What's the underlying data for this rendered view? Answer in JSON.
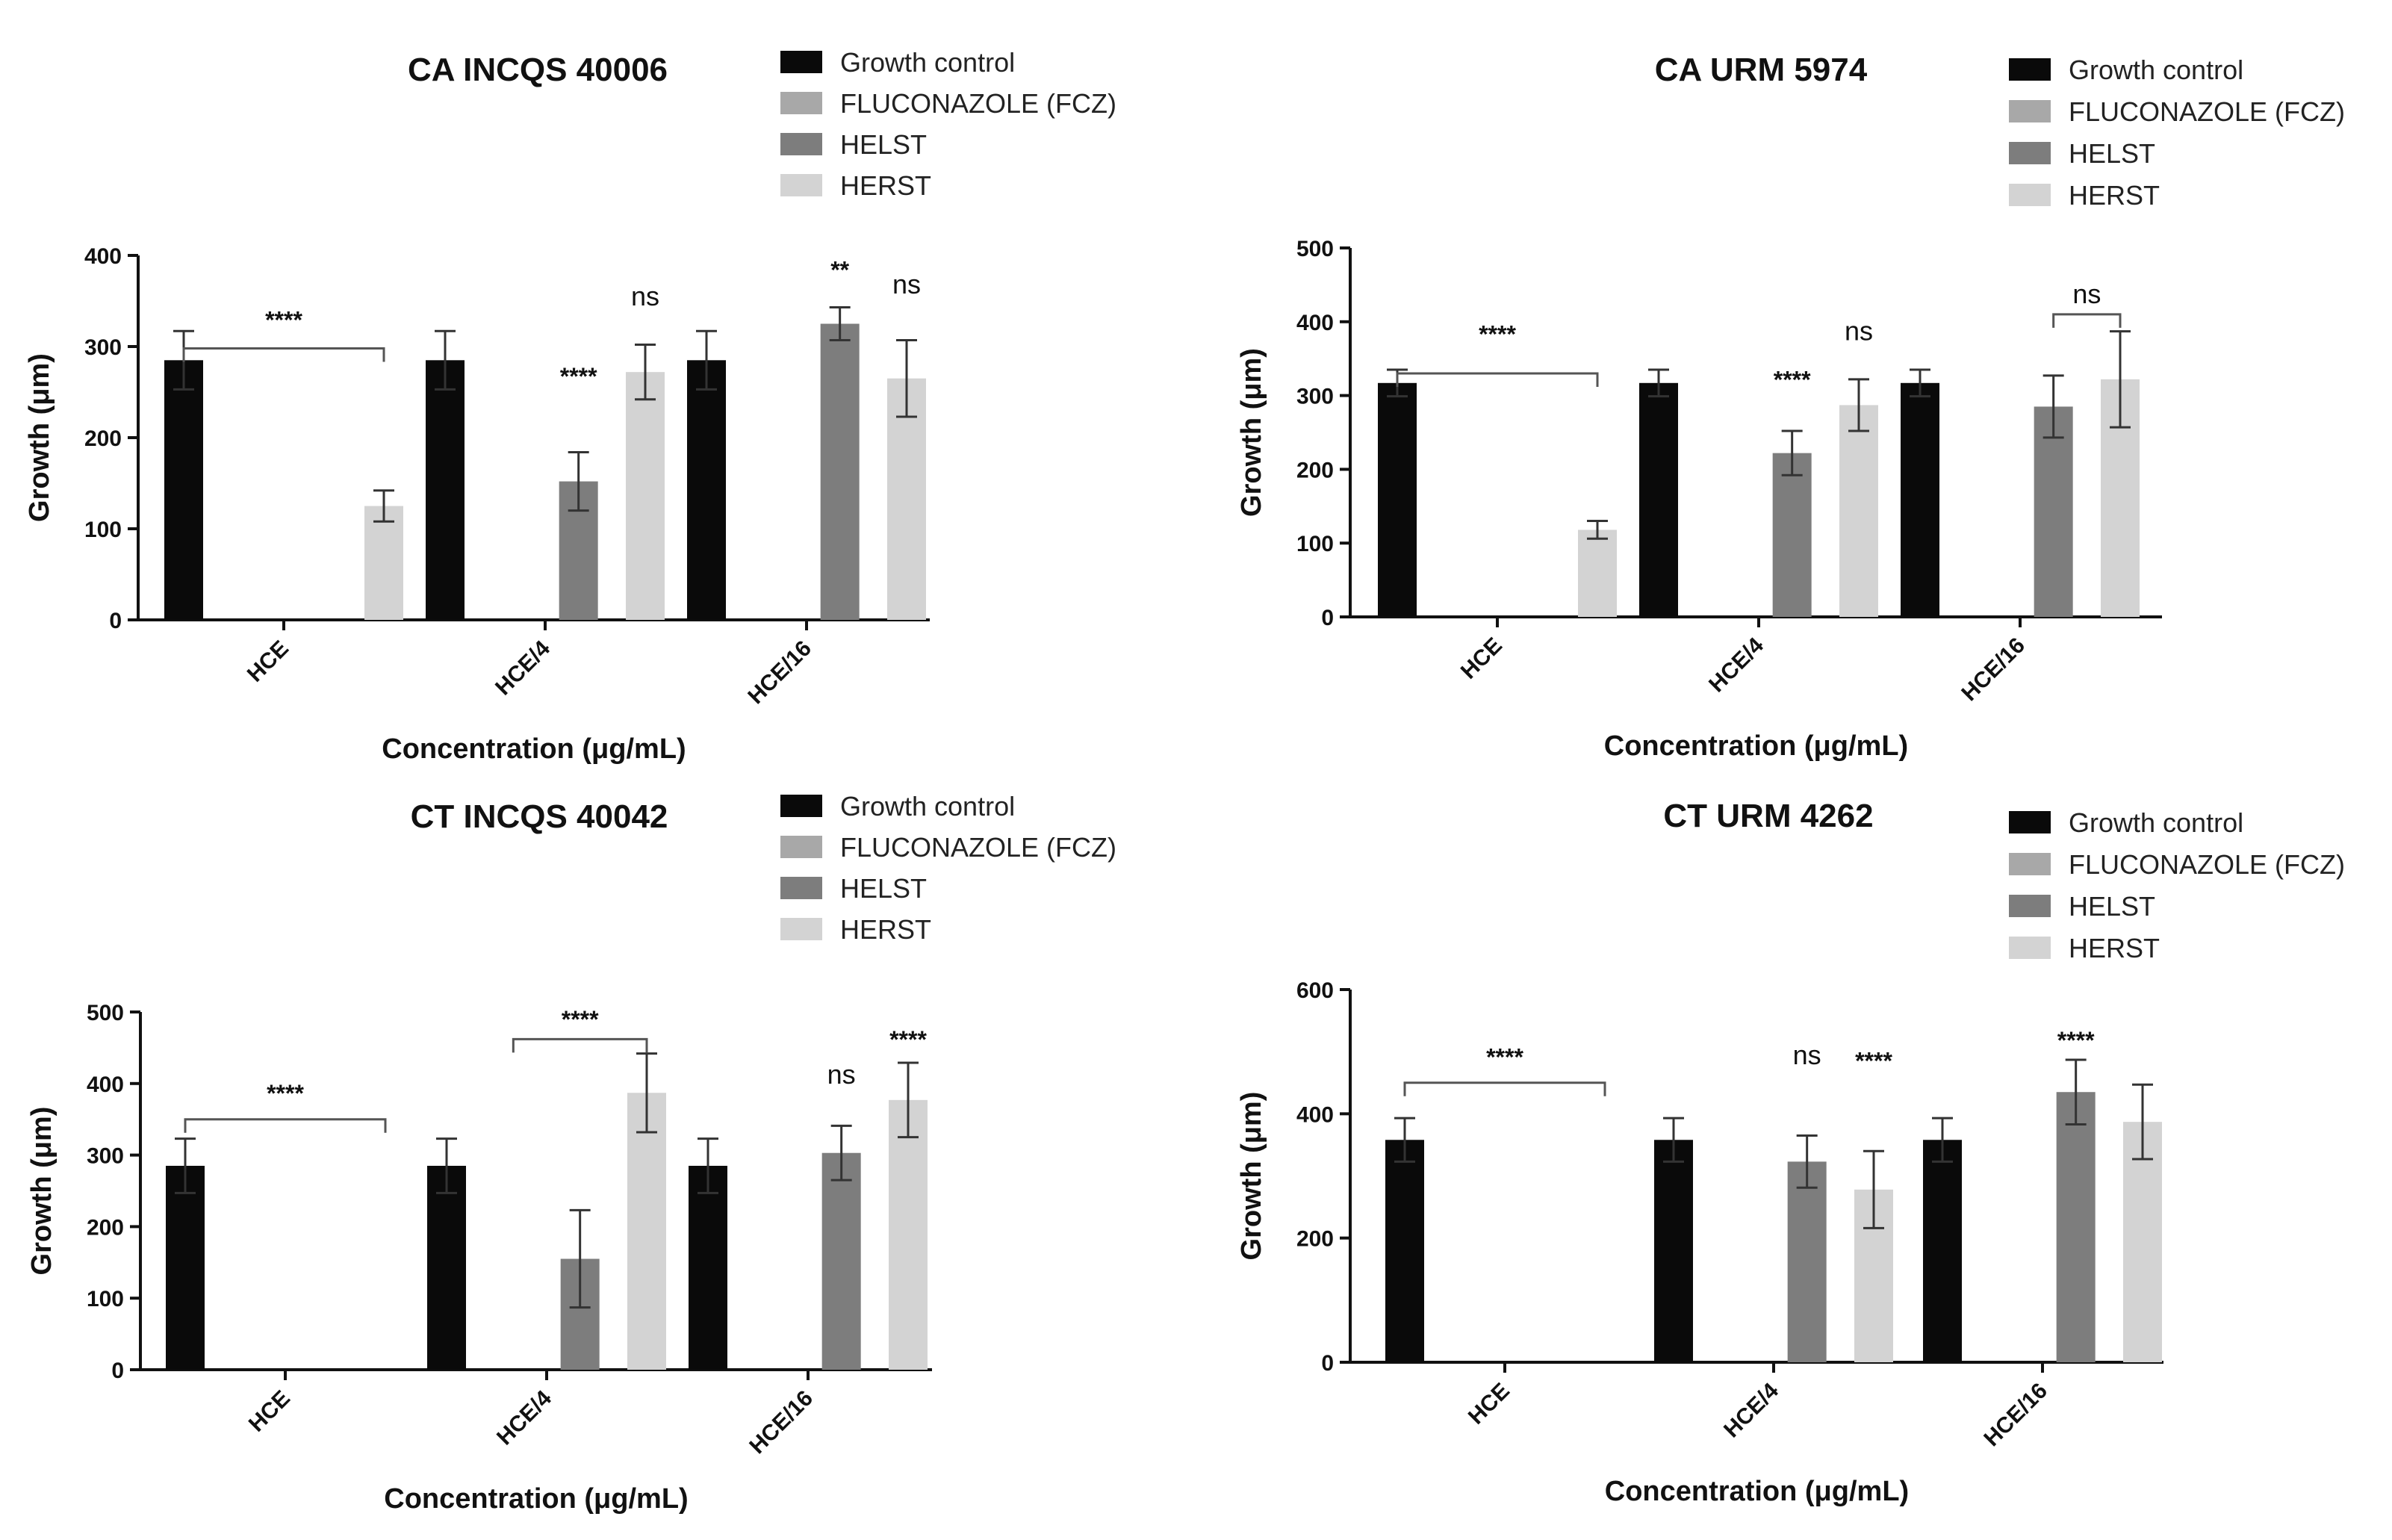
{
  "colors": {
    "growth_control": "#0a0a0a",
    "fluconazole": "#a8a8a8",
    "helst": "#7d7d7d",
    "herst": "#d3d3d3"
  },
  "chart_data": [
    {
      "type": "bar",
      "title": "CA INCQS 40006",
      "xlabel": "Concentration (μg/mL)",
      "ylabel": "Growth (μm)",
      "ylim": [
        0,
        400
      ],
      "yticks": [
        "0",
        "100",
        "200",
        "300",
        "400"
      ],
      "categories": [
        "HCE",
        "HCE/4",
        "HCE/16"
      ],
      "legend": [
        "Growth control",
        "FLUCONAZOLE (FCZ)",
        "HELST",
        "HERST"
      ],
      "series": [
        {
          "name": "Growth control",
          "color_key": "growth_control",
          "values": [
            285,
            285,
            285
          ],
          "errors": [
            32,
            32,
            32
          ]
        },
        {
          "name": "FLUCONAZOLE (FCZ)",
          "color_key": "fluconazole",
          "values": [
            0,
            0,
            0
          ],
          "errors": [
            0,
            0,
            0
          ]
        },
        {
          "name": "HELST",
          "color_key": "helst",
          "values": [
            0,
            152,
            325
          ],
          "errors": [
            0,
            32,
            18
          ]
        },
        {
          "name": "HERST",
          "color_key": "herst",
          "values": [
            125,
            272,
            265
          ],
          "errors": [
            17,
            30,
            42
          ]
        }
      ],
      "annotations": [
        {
          "text": "****",
          "cat": 0,
          "series": 2,
          "y": 320,
          "bracket": [
            0,
            3
          ],
          "bracket_y": 298
        },
        {
          "text": "****",
          "cat": 1,
          "series": 2,
          "y": 258
        },
        {
          "text": "ns",
          "cat": 1,
          "series": 3,
          "y": 345
        },
        {
          "text": "**",
          "cat": 2,
          "series": 2,
          "y": 375
        },
        {
          "text": "ns",
          "cat": 2,
          "series": 3,
          "y": 358
        }
      ]
    },
    {
      "type": "bar",
      "title": "CA URM 5974",
      "xlabel": "Concentration (μg/mL)",
      "ylabel": "Growth (μm)",
      "ylim": [
        0,
        500
      ],
      "yticks": [
        "0",
        "100",
        "200",
        "300",
        "400",
        "500"
      ],
      "categories": [
        "HCE",
        "HCE/4",
        "HCE/16"
      ],
      "legend": [
        "Growth control",
        "FLUCONAZOLE (FCZ)",
        "HELST",
        "HERST"
      ],
      "series": [
        {
          "name": "Growth control",
          "color_key": "growth_control",
          "values": [
            317,
            317,
            317
          ],
          "errors": [
            18,
            18,
            18
          ]
        },
        {
          "name": "FLUCONAZOLE (FCZ)",
          "color_key": "fluconazole",
          "values": [
            0,
            0,
            0
          ],
          "errors": [
            0,
            0,
            0
          ]
        },
        {
          "name": "HELST",
          "color_key": "helst",
          "values": [
            0,
            222,
            285
          ],
          "errors": [
            0,
            30,
            42
          ]
        },
        {
          "name": "HERST",
          "color_key": "herst",
          "values": [
            118,
            287,
            322
          ],
          "errors": [
            12,
            35,
            65
          ]
        }
      ],
      "annotations": [
        {
          "text": "****",
          "cat": 0,
          "series": 2,
          "y": 372,
          "bracket": [
            0,
            3
          ],
          "bracket_y": 330
        },
        {
          "text": "****",
          "cat": 1,
          "series": 2,
          "y": 310
        },
        {
          "text": "ns",
          "cat": 1,
          "series": 3,
          "y": 375
        },
        {
          "text": "ns",
          "cat": 2,
          "series": 2.5,
          "y": 425,
          "bracket": [
            2,
            3
          ],
          "bracket_y": 410
        }
      ]
    },
    {
      "type": "bar",
      "title": "CT INCQS 40042",
      "xlabel": "Concentration (μg/mL)",
      "ylabel": "Growth (μm)",
      "ylim": [
        0,
        500
      ],
      "yticks": [
        "0",
        "100",
        "200",
        "300",
        "400",
        "500"
      ],
      "categories": [
        "HCE",
        "HCE/4",
        "HCE/16"
      ],
      "legend": [
        "Growth control",
        "FLUCONAZOLE (FCZ)",
        "HELST",
        "HERST"
      ],
      "series": [
        {
          "name": "Growth control",
          "color_key": "growth_control",
          "values": [
            285,
            285,
            285
          ],
          "errors": [
            38,
            38,
            38
          ]
        },
        {
          "name": "FLUCONAZOLE (FCZ)",
          "color_key": "fluconazole",
          "values": [
            0,
            0,
            0
          ],
          "errors": [
            0,
            0,
            0
          ]
        },
        {
          "name": "HELST",
          "color_key": "helst",
          "values": [
            0,
            155,
            303
          ],
          "errors": [
            0,
            68,
            38
          ]
        },
        {
          "name": "HERST",
          "color_key": "herst",
          "values": [
            0,
            387,
            377
          ],
          "errors": [
            0,
            55,
            52
          ]
        }
      ],
      "annotations": [
        {
          "text": "****",
          "cat": 0,
          "series": 2,
          "y": 375,
          "bracket": [
            0,
            3
          ],
          "bracket_y": 350
        },
        {
          "text": "****",
          "cat": 1,
          "series": 2.5,
          "y": 478,
          "bracket": [
            1,
            3
          ],
          "bracket_y": 462
        },
        {
          "text": "ns",
          "cat": 2,
          "series": 2,
          "y": 400
        },
        {
          "text": "****",
          "cat": 2,
          "series": 3,
          "y": 450
        }
      ]
    },
    {
      "type": "bar",
      "title": "CT URM 4262",
      "xlabel": "Concentration (μg/mL)",
      "ylabel": "Growth (μm)",
      "ylim": [
        0,
        600
      ],
      "yticks": [
        "0",
        "200",
        "400",
        "600"
      ],
      "categories": [
        "HCE",
        "HCE/4",
        "HCE/16"
      ],
      "legend": [
        "Growth control",
        "FLUCONAZOLE (FCZ)",
        "HELST",
        "HERST"
      ],
      "series": [
        {
          "name": "Growth control",
          "color_key": "growth_control",
          "values": [
            358,
            358,
            358
          ],
          "errors": [
            35,
            35,
            35
          ]
        },
        {
          "name": "FLUCONAZOLE (FCZ)",
          "color_key": "fluconazole",
          "values": [
            0,
            0,
            0
          ],
          "errors": [
            0,
            0,
            0
          ]
        },
        {
          "name": "HELST",
          "color_key": "helst",
          "values": [
            0,
            323,
            435
          ],
          "errors": [
            0,
            42,
            52
          ]
        },
        {
          "name": "HERST",
          "color_key": "herst",
          "values": [
            0,
            278,
            387
          ],
          "errors": [
            0,
            62,
            60
          ]
        }
      ],
      "annotations": [
        {
          "text": "****",
          "cat": 0,
          "series": 2,
          "y": 478,
          "bracket": [
            0,
            3
          ],
          "bracket_y": 450
        },
        {
          "text": "ns",
          "cat": 1,
          "series": 2,
          "y": 480
        },
        {
          "text": "****",
          "cat": 1,
          "series": 3,
          "y": 472
        },
        {
          "text": "****",
          "cat": 2,
          "series": 2,
          "y": 505
        }
      ]
    }
  ]
}
